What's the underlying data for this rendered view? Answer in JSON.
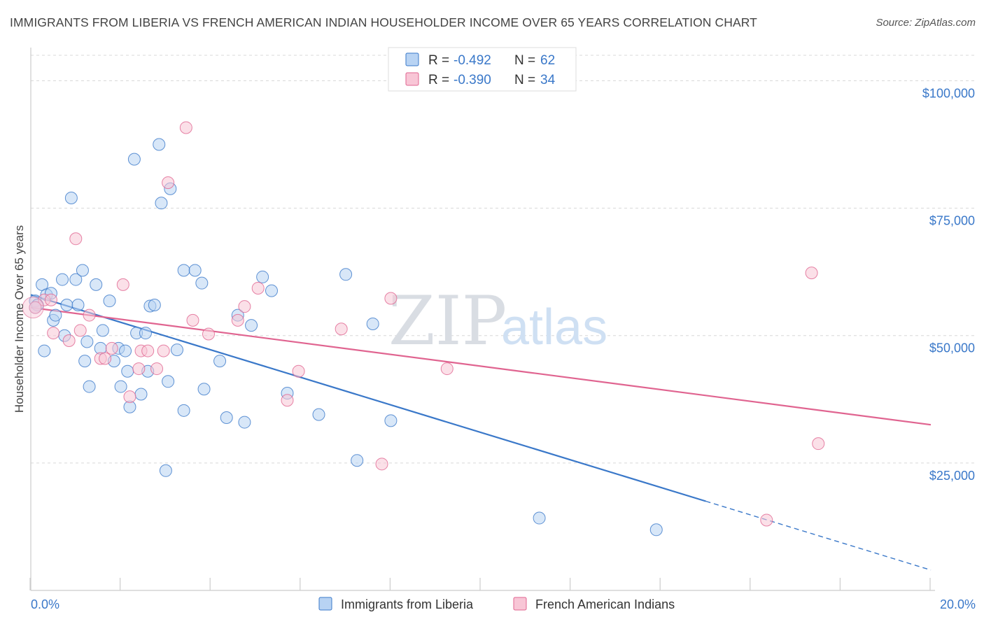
{
  "title": "IMMIGRANTS FROM LIBERIA VS FRENCH AMERICAN INDIAN HOUSEHOLDER INCOME OVER 65 YEARS CORRELATION CHART",
  "source": "Source: ZipAtlas.com",
  "watermark": {
    "zip": "ZIP",
    "atlas": "atlas"
  },
  "colors": {
    "blue": "#3a78c9",
    "blue_fill": "#b8d3f3",
    "pink": "#e06490",
    "pink_fill": "#f8c6d6",
    "grid": "#d8d8d8"
  },
  "legend": {
    "entries": [
      {
        "r_label": "R =",
        "r_value": "-0.492",
        "n_label": "N =",
        "n_value": "62"
      },
      {
        "r_label": "R =",
        "r_value": "-0.390",
        "n_label": "N =",
        "n_value": "34"
      }
    ]
  },
  "bottom_legend": [
    "Immigrants from Liberia",
    "French American Indians"
  ],
  "chart_data": {
    "type": "scatter",
    "title": "IMMIGRANTS FROM LIBERIA VS FRENCH AMERICAN INDIAN HOUSEHOLDER INCOME OVER 65 YEARS CORRELATION CHART",
    "xlabel": "",
    "ylabel": "Householder Income Over 65 years",
    "xlim": [
      0,
      20
    ],
    "ylim": [
      0,
      105000
    ],
    "x_tick_labels": [
      "0.0%",
      "20.0%"
    ],
    "y_ticks": [
      25000,
      50000,
      75000,
      100000
    ],
    "y_tick_labels": [
      "$25,000",
      "$50,000",
      "$75,000",
      "$100,000"
    ],
    "grid": true,
    "legend_position": "top-center",
    "series": [
      {
        "name": "Immigrants from Liberia",
        "color": "#3a78c9",
        "r": -0.492,
        "n": 62,
        "trend": {
          "x": [
            0,
            15
          ],
          "y": [
            58000,
            17500
          ],
          "dashed_to": {
            "x": 20,
            "y": 4000
          }
        },
        "points": [
          [
            0.1,
            56800
          ],
          [
            0.15,
            56000
          ],
          [
            0.1,
            55500
          ],
          [
            0.25,
            60000
          ],
          [
            0.35,
            58000
          ],
          [
            0.45,
            58300
          ],
          [
            0.3,
            47000
          ],
          [
            0.5,
            53000
          ],
          [
            0.55,
            54000
          ],
          [
            0.7,
            61000
          ],
          [
            0.8,
            56000
          ],
          [
            0.75,
            50000
          ],
          [
            0.9,
            77000
          ],
          [
            1.0,
            61000
          ],
          [
            1.05,
            56000
          ],
          [
            1.15,
            62800
          ],
          [
            1.25,
            48800
          ],
          [
            1.3,
            40000
          ],
          [
            1.2,
            45000
          ],
          [
            1.45,
            60000
          ],
          [
            1.55,
            47500
          ],
          [
            1.6,
            51000
          ],
          [
            1.75,
            56800
          ],
          [
            1.85,
            45000
          ],
          [
            1.95,
            47500
          ],
          [
            2.0,
            40000
          ],
          [
            2.1,
            47000
          ],
          [
            2.15,
            43000
          ],
          [
            2.2,
            36000
          ],
          [
            2.3,
            84600
          ],
          [
            2.35,
            50500
          ],
          [
            2.45,
            38500
          ],
          [
            2.55,
            50500
          ],
          [
            2.6,
            43000
          ],
          [
            2.65,
            55800
          ],
          [
            2.75,
            56000
          ],
          [
            2.85,
            87500
          ],
          [
            2.9,
            76000
          ],
          [
            3.0,
            23500
          ],
          [
            3.05,
            41000
          ],
          [
            3.1,
            78800
          ],
          [
            3.25,
            47200
          ],
          [
            3.4,
            35300
          ],
          [
            3.4,
            62800
          ],
          [
            3.65,
            62800
          ],
          [
            3.8,
            60300
          ],
          [
            3.85,
            39500
          ],
          [
            4.2,
            45000
          ],
          [
            4.35,
            33900
          ],
          [
            4.6,
            54000
          ],
          [
            4.75,
            33000
          ],
          [
            4.9,
            52000
          ],
          [
            5.15,
            61500
          ],
          [
            5.35,
            58800
          ],
          [
            5.7,
            38700
          ],
          [
            6.4,
            34500
          ],
          [
            7.0,
            62000
          ],
          [
            7.25,
            25500
          ],
          [
            7.6,
            52300
          ],
          [
            8.0,
            33300
          ],
          [
            11.3,
            14200
          ],
          [
            13.9,
            11900
          ]
        ]
      },
      {
        "name": "French American Indians",
        "color": "#e06490",
        "r": -0.39,
        "n": 34,
        "trend": {
          "x": [
            0,
            20
          ],
          "y": [
            55500,
            32500
          ]
        },
        "points": [
          [
            0.1,
            55500
          ],
          [
            0.3,
            57000
          ],
          [
            0.45,
            57000
          ],
          [
            0.5,
            50500
          ],
          [
            0.85,
            49000
          ],
          [
            1.0,
            69000
          ],
          [
            1.1,
            51000
          ],
          [
            1.3,
            54000
          ],
          [
            1.55,
            45500
          ],
          [
            1.65,
            45500
          ],
          [
            1.8,
            47500
          ],
          [
            2.05,
            60000
          ],
          [
            2.2,
            38000
          ],
          [
            2.4,
            43500
          ],
          [
            2.45,
            47000
          ],
          [
            2.6,
            47000
          ],
          [
            2.8,
            43500
          ],
          [
            2.95,
            47000
          ],
          [
            3.05,
            80000
          ],
          [
            3.45,
            90800
          ],
          [
            3.6,
            53000
          ],
          [
            3.95,
            50300
          ],
          [
            4.6,
            53000
          ],
          [
            4.75,
            55700
          ],
          [
            5.05,
            59300
          ],
          [
            5.7,
            37300
          ],
          [
            5.95,
            43000
          ],
          [
            6.9,
            51300
          ],
          [
            7.8,
            24800
          ],
          [
            8.0,
            57300
          ],
          [
            9.25,
            43500
          ],
          [
            17.35,
            62300
          ],
          [
            17.5,
            28800
          ],
          [
            16.35,
            13800
          ]
        ]
      }
    ]
  }
}
